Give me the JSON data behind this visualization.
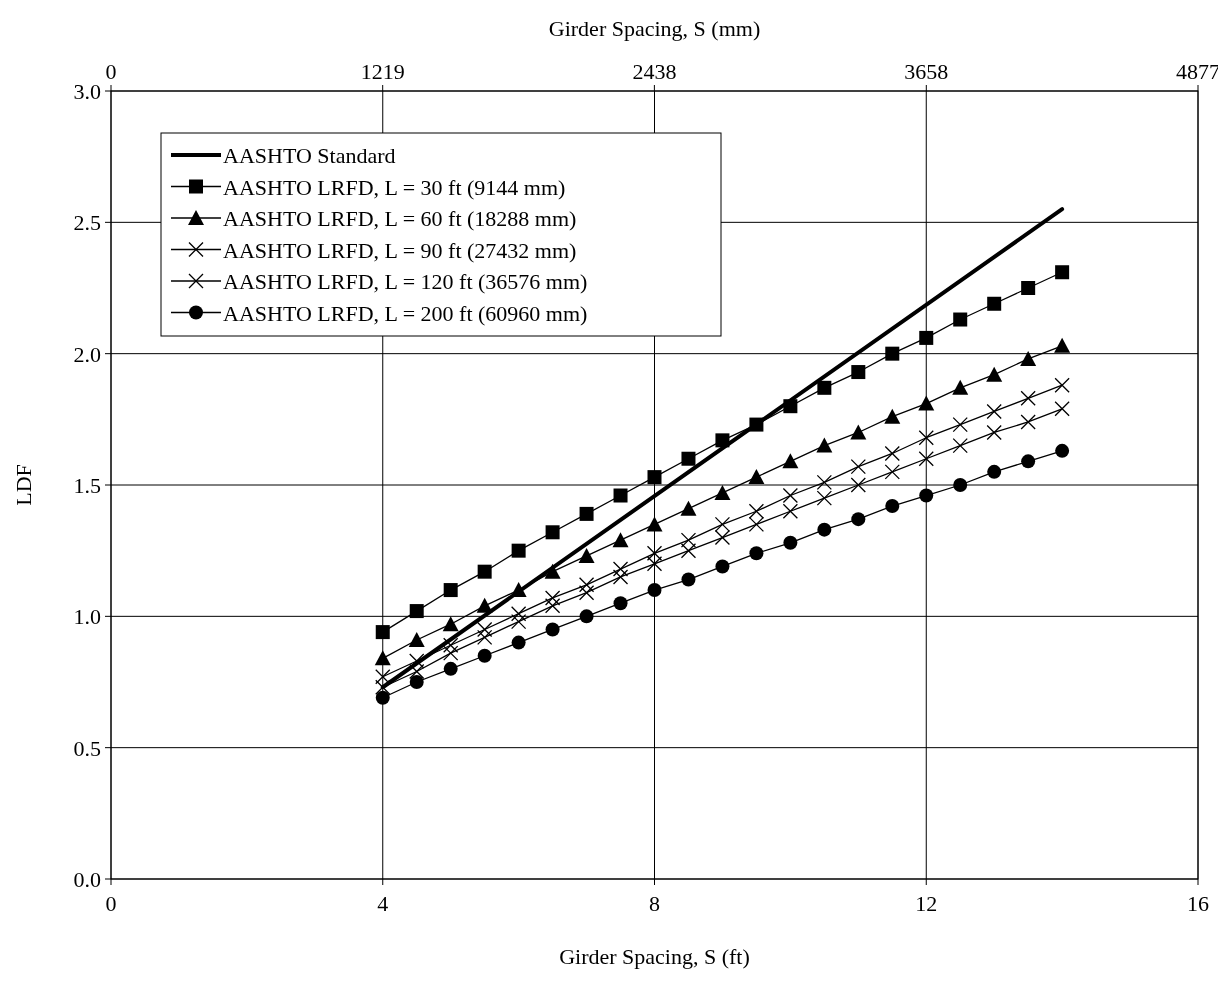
{
  "chart_data": {
    "type": "line",
    "xlabel": "Girder Spacing, S (ft)",
    "ylabel": "LDF",
    "x2label": "Girder Spacing, S (mm)",
    "xlim": [
      0,
      16
    ],
    "xticks": [
      0,
      4,
      8,
      12,
      16
    ],
    "x2lim": [
      0,
      4877
    ],
    "x2ticks": [
      0,
      1219,
      2438,
      3658,
      4877
    ],
    "ylim": [
      0,
      3
    ],
    "yticks": [
      {
        "value": 0,
        "label": "0.0"
      },
      {
        "value": 0.5,
        "label": "0.5"
      },
      {
        "value": 1,
        "label": "1.0"
      },
      {
        "value": 1.5,
        "label": "1.5"
      },
      {
        "value": 2,
        "label": "2.0"
      },
      {
        "value": 2.5,
        "label": "2.5"
      },
      {
        "value": 3,
        "label": "3.0"
      }
    ],
    "grid": true,
    "legend": "top left",
    "line_style": "solid",
    "x": [
      4,
      4.5,
      5,
      5.5,
      6,
      6.5,
      7,
      7.5,
      8,
      8.5,
      9,
      9.5,
      10,
      10.5,
      11,
      11.5,
      12,
      12.5,
      13,
      13.5,
      14
    ],
    "series": [
      {
        "name": "AASHTO Standard",
        "color": "#000000",
        "x": [
          4,
          14
        ],
        "values": [
          0.73,
          2.55
        ]
      },
      {
        "name": "AASHTO LRFD, L = 30 ft (9144 mm)",
        "color": "#000000",
        "marker": "square",
        "values": [
          0.94,
          1.02,
          1.1,
          1.17,
          1.25,
          1.32,
          1.39,
          1.46,
          1.53,
          1.6,
          1.67,
          1.73,
          1.8,
          1.87,
          1.93,
          2.0,
          2.06,
          2.13,
          2.19,
          2.25,
          2.31
        ]
      },
      {
        "name": "AASHTO LRFD, L = 60 ft (18288 mm)",
        "color": "#000000",
        "marker": "triangle",
        "values": [
          0.84,
          0.91,
          0.97,
          1.04,
          1.1,
          1.17,
          1.23,
          1.29,
          1.35,
          1.41,
          1.47,
          1.53,
          1.59,
          1.65,
          1.7,
          1.76,
          1.81,
          1.87,
          1.92,
          1.98,
          2.03
        ]
      },
      {
        "name": "AASHTO LRFD, L = 90 ft (27432 mm)",
        "color": "#000000",
        "marker": "cross",
        "values": [
          0.77,
          0.83,
          0.89,
          0.95,
          1.01,
          1.07,
          1.12,
          1.18,
          1.24,
          1.29,
          1.35,
          1.4,
          1.46,
          1.51,
          1.57,
          1.62,
          1.68,
          1.73,
          1.78,
          1.83,
          1.88
        ]
      },
      {
        "name": "AASHTO LRFD, L = 120 ft (36576 mm)",
        "color": "#000000",
        "marker": "cross",
        "values": [
          0.73,
          0.79,
          0.86,
          0.92,
          0.98,
          1.04,
          1.09,
          1.15,
          1.2,
          1.25,
          1.3,
          1.35,
          1.4,
          1.45,
          1.5,
          1.55,
          1.6,
          1.65,
          1.7,
          1.74,
          1.79
        ]
      },
      {
        "name": "AASHTO LRFD, L = 200 ft (60960 mm)",
        "color": "#000000",
        "marker": "circle",
        "values": [
          0.69,
          0.75,
          0.8,
          0.85,
          0.9,
          0.95,
          1.0,
          1.05,
          1.1,
          1.14,
          1.19,
          1.24,
          1.28,
          1.33,
          1.37,
          1.42,
          1.46,
          1.5,
          1.55,
          1.59,
          1.63
        ]
      }
    ]
  }
}
